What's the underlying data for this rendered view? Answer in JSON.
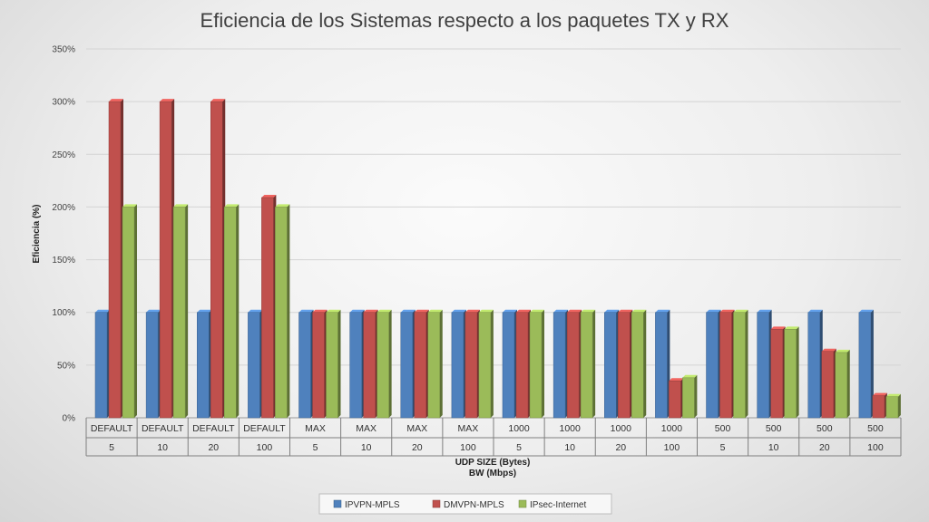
{
  "chart_data": {
    "type": "bar",
    "title": "Eficiencia de los Sistemas respecto a los paquetes TX y RX",
    "ylabel": "Eficiencia (%)",
    "xlabel_line1": "UDP SIZE (Bytes)",
    "xlabel_line2": "BW (Mbps)",
    "ylim": [
      0,
      350
    ],
    "yticks": [
      0,
      50,
      100,
      150,
      200,
      250,
      300,
      350
    ],
    "ytick_labels": [
      "0%",
      "50%",
      "100%",
      "150%",
      "200%",
      "250%",
      "300%",
      "350%"
    ],
    "categories_udp": [
      "DEFAULT",
      "DEFAULT",
      "DEFAULT",
      "DEFAULT",
      "MAX",
      "MAX",
      "MAX",
      "MAX",
      "1000",
      "1000",
      "1000",
      "1000",
      "500",
      "500",
      "500",
      "500"
    ],
    "categories_bw": [
      "5",
      "10",
      "20",
      "100",
      "5",
      "10",
      "20",
      "100",
      "5",
      "10",
      "20",
      "100",
      "5",
      "10",
      "20",
      "100"
    ],
    "series": [
      {
        "name": "IPVPN-MPLS",
        "color": "#4f81bd",
        "values": [
          100,
          100,
          100,
          100,
          100,
          100,
          100,
          100,
          100,
          100,
          100,
          100,
          100,
          100,
          100,
          100
        ]
      },
      {
        "name": "DMVPN-MPLS",
        "color": "#c0504d",
        "values": [
          300,
          300,
          300,
          209,
          100,
          100,
          100,
          100,
          100,
          100,
          100,
          35,
          100,
          84,
          63,
          21
        ]
      },
      {
        "name": "IPsec-Internet",
        "color": "#9bbb59",
        "values": [
          200,
          200,
          200,
          200,
          100,
          100,
          100,
          100,
          100,
          100,
          100,
          38,
          100,
          84,
          62,
          20
        ]
      }
    ],
    "grid": true,
    "legend_position": "bottom"
  }
}
